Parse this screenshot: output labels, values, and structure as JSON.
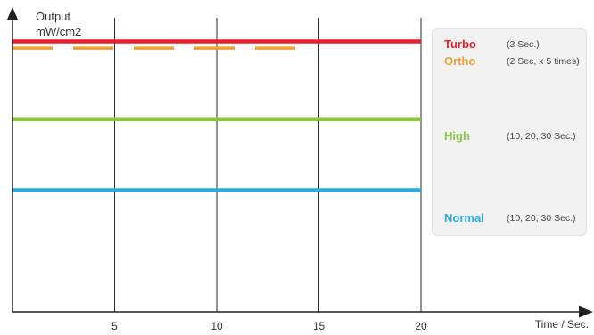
{
  "chart_data": {
    "type": "line",
    "ylabel": [
      "Output",
      "mW/cm2"
    ],
    "xlabel": "Time / Sec.",
    "xlim": [
      0,
      20
    ],
    "x_ticks": [
      "5",
      "10",
      "15",
      "20"
    ],
    "grid": "vertical",
    "legend_position": "right",
    "series": [
      {
        "name": "Turbo",
        "note": "(3 Sec.)",
        "color": "#e8202a",
        "style": "solid",
        "x": [
          0,
          20
        ],
        "level": 4.0
      },
      {
        "name": "Ortho",
        "note": "(2 Sec, x 5 times)",
        "color": "#f0a030",
        "style": "dashed",
        "x": [
          0,
          14
        ],
        "level": 3.9
      },
      {
        "name": "High",
        "note": "(10, 20, 30 Sec.)",
        "color": "#8cc63f",
        "style": "solid",
        "x": [
          0,
          20
        ],
        "level": 2.85
      },
      {
        "name": "Normal",
        "note": "(10, 20, 30 Sec.)",
        "color": "#29abe2",
        "style": "solid",
        "x": [
          0,
          20
        ],
        "level": 1.8
      }
    ]
  }
}
